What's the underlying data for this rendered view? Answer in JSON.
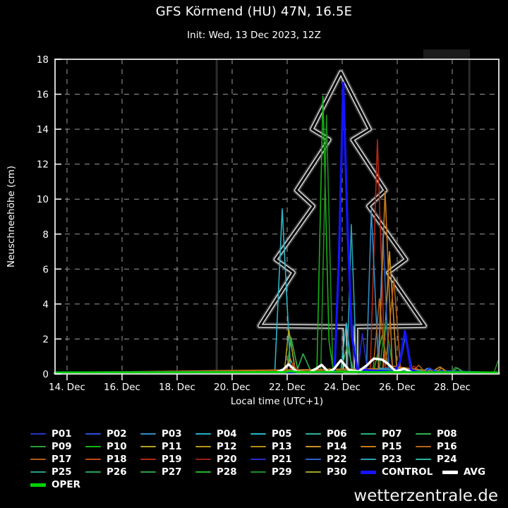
{
  "header": {
    "title": "GFS Körmend (HU) 47N, 16.5E",
    "subtitle": "Init: Wed, 13 Dec 2023, 12Z"
  },
  "watermark": "wetterzentrale.de",
  "chart_data": {
    "type": "line",
    "title": "GFS Körmend (HU) 47N, 16.5E",
    "subtitle": "Init: Wed, 13 Dec 2023, 12Z",
    "xlabel": "Local time (UTC+1)",
    "ylabel": "Neuschneehöhe (cm)",
    "x_domain_days": [
      13.56,
      29.69
    ],
    "ylim": [
      0,
      18
    ],
    "grid": "dashed",
    "legend_position": "bottom",
    "x_ticks": [
      {
        "day": 14,
        "label": "14. Dec"
      },
      {
        "day": 16,
        "label": "16. Dec"
      },
      {
        "day": 18,
        "label": "18. Dec"
      },
      {
        "day": 20,
        "label": "20. Dec"
      },
      {
        "day": 22,
        "label": "22. Dec"
      },
      {
        "day": 24,
        "label": "24. Dec"
      },
      {
        "day": 26,
        "label": "26. Dec"
      },
      {
        "day": 28,
        "label": "28. Dec"
      }
    ],
    "y_ticks": [
      0,
      2,
      4,
      6,
      8,
      10,
      12,
      14,
      16,
      18
    ],
    "tree_overlay": {
      "description": "christmas-tree outline drawn in gray, centered on 24 Dec, apex 17.25 cm",
      "color": "#d8d8d8",
      "points": [
        [
          23.95,
          17.25
        ],
        [
          22.9,
          14.0
        ],
        [
          23.53,
          13.4
        ],
        [
          22.33,
          10.5
        ],
        [
          22.95,
          9.6
        ],
        [
          21.58,
          6.55
        ],
        [
          22.23,
          5.8
        ],
        [
          21.0,
          2.75
        ],
        [
          24.1,
          2.7
        ],
        [
          24.1,
          0.12
        ],
        [
          24.5,
          0.12
        ],
        [
          24.5,
          2.7
        ],
        [
          27.0,
          2.75
        ],
        [
          25.67,
          5.8
        ],
        [
          26.32,
          6.55
        ],
        [
          24.95,
          9.6
        ],
        [
          25.57,
          10.5
        ],
        [
          24.37,
          13.4
        ],
        [
          25.0,
          14.0
        ]
      ]
    },
    "series": [
      {
        "name": "P05",
        "color": "#28b4c8",
        "width": 1.6,
        "points": [
          [
            13.56,
            0.08
          ],
          [
            21.55,
            0.1
          ],
          [
            21.82,
            9.45
          ],
          [
            22.12,
            0.25
          ],
          [
            23.95,
            0.15
          ],
          [
            24.15,
            2.9
          ],
          [
            24.35,
            0.25
          ],
          [
            26.85,
            0.1
          ],
          [
            27.1,
            0.32
          ],
          [
            27.35,
            0.1
          ],
          [
            29.69,
            0.08
          ]
        ]
      },
      {
        "name": "P11",
        "color": "#b4a01e",
        "width": 1.6,
        "points": [
          [
            13.56,
            0.08
          ],
          [
            21.9,
            0.15
          ],
          [
            22.06,
            2.55
          ],
          [
            22.3,
            0.15
          ],
          [
            23.35,
            0.1
          ],
          [
            23.55,
            0.3
          ],
          [
            23.75,
            0.1
          ],
          [
            29.69,
            0.08
          ]
        ]
      },
      {
        "name": "P08",
        "color": "#28b450",
        "width": 1.6,
        "points": [
          [
            13.56,
            0.08
          ],
          [
            21.98,
            0.1
          ],
          [
            22.14,
            2.1
          ],
          [
            22.38,
            0.3
          ],
          [
            22.58,
            1.15
          ],
          [
            22.85,
            0.2
          ],
          [
            23.05,
            0.35
          ],
          [
            23.25,
            0.12
          ],
          [
            26.05,
            0.15
          ],
          [
            26.3,
            2.2
          ],
          [
            26.55,
            0.15
          ],
          [
            29.69,
            0.08
          ]
        ]
      },
      {
        "name": "P14",
        "color": "#c89028",
        "width": 1.6,
        "points": [
          [
            13.56,
            0.08
          ],
          [
            21.95,
            0.1
          ],
          [
            22.1,
            0.9
          ],
          [
            22.32,
            0.1
          ],
          [
            25.48,
            0.3
          ],
          [
            25.72,
            7.0
          ],
          [
            25.98,
            0.35
          ],
          [
            27.25,
            0.12
          ],
          [
            27.55,
            0.4
          ],
          [
            27.85,
            0.1
          ],
          [
            29.69,
            0.08
          ]
        ]
      },
      {
        "name": "P19",
        "color": "#b42814",
        "width": 1.6,
        "points": [
          [
            13.56,
            0.08
          ],
          [
            22.05,
            0.1
          ],
          [
            22.2,
            0.6
          ],
          [
            22.42,
            0.12
          ],
          [
            25.02,
            0.25
          ],
          [
            25.28,
            13.4
          ],
          [
            25.55,
            0.4
          ],
          [
            26.42,
            0.15
          ],
          [
            26.6,
            0.45
          ],
          [
            26.85,
            0.1
          ],
          [
            29.69,
            0.08
          ]
        ]
      },
      {
        "name": "P10",
        "color": "#14b414",
        "width": 1.6,
        "points": [
          [
            13.56,
            0.08
          ],
          [
            23.08,
            0.12
          ],
          [
            23.3,
            15.9
          ],
          [
            23.52,
            1.9
          ],
          [
            23.68,
            0.15
          ],
          [
            25.15,
            0.2
          ],
          [
            25.45,
            2.2
          ],
          [
            25.72,
            0.15
          ],
          [
            29.69,
            0.08
          ]
        ]
      },
      {
        "name": "P29",
        "color": "#1e8c1e",
        "width": 1.6,
        "points": [
          [
            13.56,
            0.08
          ],
          [
            23.22,
            0.1
          ],
          [
            23.43,
            14.8
          ],
          [
            23.66,
            0.25
          ],
          [
            25.35,
            0.25
          ],
          [
            25.58,
            3.05
          ],
          [
            25.85,
            0.2
          ],
          [
            27.95,
            0.12
          ],
          [
            28.12,
            0.38
          ],
          [
            28.4,
            0.1
          ],
          [
            29.52,
            0.1
          ],
          [
            29.69,
            0.85
          ]
        ]
      },
      {
        "name": "P23",
        "color": "#28a0b4",
        "width": 1.6,
        "points": [
          [
            13.56,
            0.08
          ],
          [
            24.18,
            0.2
          ],
          [
            24.33,
            8.55
          ],
          [
            24.52,
            0.3
          ],
          [
            29.69,
            0.08
          ]
        ]
      },
      {
        "name": "P03",
        "color": "#2f8cc8",
        "width": 1.6,
        "points": [
          [
            13.56,
            0.08
          ],
          [
            24.88,
            0.15
          ],
          [
            25.06,
            9.4
          ],
          [
            25.32,
            0.35
          ],
          [
            27.0,
            0.1
          ],
          [
            27.18,
            0.3
          ],
          [
            27.4,
            0.1
          ],
          [
            29.69,
            0.08
          ]
        ]
      },
      {
        "name": "P22",
        "color": "#2864c8",
        "width": 1.6,
        "points": [
          [
            13.56,
            0.08
          ],
          [
            25.3,
            0.2
          ],
          [
            25.48,
            8.0
          ],
          [
            25.7,
            0.3
          ],
          [
            29.69,
            0.08
          ]
        ]
      },
      {
        "name": "P17",
        "color": "#b45a14",
        "width": 1.6,
        "points": [
          [
            13.56,
            0.08
          ],
          [
            25.12,
            0.2
          ],
          [
            25.35,
            4.3
          ],
          [
            25.58,
            0.5
          ],
          [
            25.88,
            5.4
          ],
          [
            26.12,
            0.25
          ],
          [
            26.6,
            0.2
          ],
          [
            26.78,
            0.5
          ],
          [
            27.0,
            0.12
          ],
          [
            29.69,
            0.08
          ]
        ]
      },
      {
        "name": "P15",
        "color": "#c87818",
        "width": 1.6,
        "points": [
          [
            13.56,
            0.08
          ],
          [
            25.32,
            0.3
          ],
          [
            25.56,
            10.45
          ],
          [
            25.82,
            0.45
          ],
          [
            27.45,
            0.12
          ],
          [
            27.6,
            0.35
          ],
          [
            27.8,
            0.1
          ],
          [
            29.69,
            0.08
          ]
        ]
      },
      {
        "name": "P21",
        "color": "#2828c8",
        "width": 1.6,
        "points": [
          [
            13.56,
            0.08
          ],
          [
            24.58,
            0.12
          ],
          [
            24.73,
            2.3
          ],
          [
            24.92,
            0.15
          ],
          [
            27.02,
            0.1
          ],
          [
            27.18,
            0.35
          ],
          [
            27.42,
            0.1
          ],
          [
            29.69,
            0.08
          ]
        ]
      },
      {
        "name": "P27",
        "color": "#2f9f3f",
        "width": 1.6,
        "points": [
          [
            13.56,
            0.08
          ],
          [
            23.95,
            0.12
          ],
          [
            24.18,
            1.6
          ],
          [
            24.42,
            0.15
          ],
          [
            28.0,
            0.1
          ],
          [
            28.18,
            0.35
          ],
          [
            28.45,
            0.08
          ],
          [
            29.69,
            0.08
          ]
        ]
      },
      {
        "name": "CONTROL",
        "color": "#1414ff",
        "width": 3.2,
        "points": [
          [
            13.56,
            0.08
          ],
          [
            23.72,
            0.1
          ],
          [
            23.88,
            6.5
          ],
          [
            24.04,
            16.65
          ],
          [
            24.2,
            8.0
          ],
          [
            24.35,
            2.2
          ],
          [
            24.55,
            0.25
          ],
          [
            25.9,
            0.1
          ],
          [
            26.1,
            0.7
          ],
          [
            26.28,
            2.45
          ],
          [
            26.5,
            0.25
          ],
          [
            26.72,
            0.1
          ],
          [
            29.69,
            0.06
          ]
        ]
      },
      {
        "name": "AVG",
        "color": "#ffffff",
        "width": 3.4,
        "points": [
          [
            13.56,
            0.05
          ],
          [
            21.55,
            0.05
          ],
          [
            21.85,
            0.25
          ],
          [
            22.05,
            0.55
          ],
          [
            22.35,
            0.12
          ],
          [
            22.8,
            0.08
          ],
          [
            23.05,
            0.3
          ],
          [
            23.25,
            0.52
          ],
          [
            23.5,
            0.12
          ],
          [
            23.7,
            0.28
          ],
          [
            23.95,
            0.78
          ],
          [
            24.25,
            0.22
          ],
          [
            24.6,
            0.15
          ],
          [
            24.9,
            0.5
          ],
          [
            25.15,
            0.88
          ],
          [
            25.45,
            0.82
          ],
          [
            25.65,
            0.6
          ],
          [
            25.95,
            0.15
          ],
          [
            26.25,
            0.3
          ],
          [
            26.55,
            0.08
          ],
          [
            29.69,
            0.04
          ]
        ]
      },
      {
        "name": "OPER",
        "color": "#00d200",
        "width": 3.0,
        "points": [
          [
            13.56,
            0.08
          ],
          [
            21.9,
            0.1
          ],
          [
            22.1,
            0.16
          ],
          [
            22.4,
            0.1
          ],
          [
            24.0,
            0.12
          ],
          [
            25.5,
            0.1
          ],
          [
            29.69,
            0.08
          ]
        ]
      }
    ]
  },
  "legend": {
    "items": [
      {
        "label": "P01",
        "color": "#2832c8",
        "row": 0,
        "col": 0,
        "thick": false
      },
      {
        "label": "P02",
        "color": "#2850dc",
        "row": 0,
        "col": 1,
        "thick": false
      },
      {
        "label": "P03",
        "color": "#2f8cc8",
        "row": 0,
        "col": 2,
        "thick": false
      },
      {
        "label": "P04",
        "color": "#28aac8",
        "row": 0,
        "col": 3,
        "thick": false
      },
      {
        "label": "P05",
        "color": "#28b4c8",
        "row": 0,
        "col": 4,
        "thick": false
      },
      {
        "label": "P06",
        "color": "#28b49b",
        "row": 0,
        "col": 5,
        "thick": false
      },
      {
        "label": "P07",
        "color": "#28b478",
        "row": 0,
        "col": 6,
        "thick": false
      },
      {
        "label": "P08",
        "color": "#28b450",
        "row": 0,
        "col": 7,
        "thick": false
      },
      {
        "label": "P09",
        "color": "#28a03c",
        "row": 1,
        "col": 0,
        "thick": false
      },
      {
        "label": "P10",
        "color": "#14b414",
        "row": 1,
        "col": 1,
        "thick": false
      },
      {
        "label": "P11",
        "color": "#b4a01e",
        "row": 1,
        "col": 2,
        "thick": false
      },
      {
        "label": "P12",
        "color": "#b49614",
        "row": 1,
        "col": 3,
        "thick": false
      },
      {
        "label": "P13",
        "color": "#b48c14",
        "row": 1,
        "col": 4,
        "thick": false
      },
      {
        "label": "P14",
        "color": "#c89028",
        "row": 1,
        "col": 5,
        "thick": false
      },
      {
        "label": "P15",
        "color": "#c87818",
        "row": 1,
        "col": 6,
        "thick": false
      },
      {
        "label": "P16",
        "color": "#b46414",
        "row": 1,
        "col": 7,
        "thick": false
      },
      {
        "label": "P17",
        "color": "#b45a14",
        "row": 2,
        "col": 0,
        "thick": false
      },
      {
        "label": "P18",
        "color": "#c04818",
        "row": 2,
        "col": 1,
        "thick": false
      },
      {
        "label": "P19",
        "color": "#b42814",
        "row": 2,
        "col": 2,
        "thick": false
      },
      {
        "label": "P20",
        "color": "#961e14",
        "row": 2,
        "col": 3,
        "thick": false
      },
      {
        "label": "P21",
        "color": "#2828c8",
        "row": 2,
        "col": 4,
        "thick": false
      },
      {
        "label": "P22",
        "color": "#2864c8",
        "row": 2,
        "col": 5,
        "thick": false
      },
      {
        "label": "P23",
        "color": "#28a0b4",
        "row": 2,
        "col": 6,
        "thick": false
      },
      {
        "label": "P24",
        "color": "#28b4a0",
        "row": 2,
        "col": 7,
        "thick": false
      },
      {
        "label": "P25",
        "color": "#28a082",
        "row": 3,
        "col": 0,
        "thick": false
      },
      {
        "label": "P26",
        "color": "#28a05a",
        "row": 3,
        "col": 1,
        "thick": false
      },
      {
        "label": "P27",
        "color": "#2f9f3f",
        "row": 3,
        "col": 2,
        "thick": false
      },
      {
        "label": "P28",
        "color": "#28b428",
        "row": 3,
        "col": 3,
        "thick": false
      },
      {
        "label": "P29",
        "color": "#1e8c1e",
        "row": 3,
        "col": 4,
        "thick": false
      },
      {
        "label": "P30",
        "color": "#a0a028",
        "row": 3,
        "col": 5,
        "thick": false
      },
      {
        "label": "CONTROL",
        "color": "#1414ff",
        "row": 3,
        "col": 6,
        "thick": true
      },
      {
        "label": "AVG",
        "color": "#ffffff",
        "row": 3,
        "col": 7,
        "thick": true,
        "x": 627
      },
      {
        "label": "OPER",
        "color": "#00d200",
        "row": 4,
        "col": 0,
        "thick": true
      }
    ]
  },
  "colors": {
    "background": "#000000",
    "axis_border": "#d0d0d0",
    "gridline": "#9a9a9a",
    "tree_outline": "#d8d8d8"
  }
}
